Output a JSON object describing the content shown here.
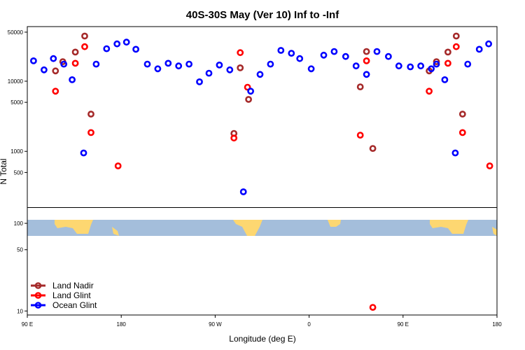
{
  "chart_data": {
    "type": "scatter",
    "title": "40S-30S May (Ver 10)   Inf to -Inf",
    "xlabel": "Longitude (deg E)",
    "ylabel": "N Total",
    "x_ticks": [
      {
        "x": 90,
        "label": "90 E"
      },
      {
        "x": 180,
        "label": "180"
      },
      {
        "x": 270,
        "label": "90 W"
      },
      {
        "x": 360,
        "label": "0"
      },
      {
        "x": 450,
        "label": "90 E"
      },
      {
        "x": 540,
        "label": "180"
      }
    ],
    "xlim": [
      90,
      540
    ],
    "y_scale": "log",
    "upper_panel": {
      "ylim": [
        160,
        60000
      ],
      "y_ticks": [
        500,
        1000,
        5000,
        10000,
        50000
      ]
    },
    "lower_panel": {
      "ylim": [
        9,
        150
      ],
      "y_ticks": [
        10,
        50,
        100
      ]
    },
    "legend": {
      "position": "bottom-left",
      "entries": [
        {
          "name": "Land Nadir",
          "color": "#a52a2a"
        },
        {
          "name": "Land Glint",
          "color": "#ff0000"
        },
        {
          "name": "Ocean Glint",
          "color": "#0000ff"
        }
      ]
    },
    "series": [
      {
        "name": "Land Nadir",
        "color": "#a52a2a",
        "points": [
          {
            "x": 117,
            "y": 14000
          },
          {
            "x": 124,
            "y": 19000
          },
          {
            "x": 136,
            "y": 26000
          },
          {
            "x": 145,
            "y": 44000
          },
          {
            "x": 151,
            "y": 3400
          },
          {
            "x": 288,
            "y": 1800
          },
          {
            "x": 294,
            "y": 15500
          },
          {
            "x": 302,
            "y": 5500
          },
          {
            "x": 409,
            "y": 8300
          },
          {
            "x": 415,
            "y": 26500
          },
          {
            "x": 421,
            "y": 1100
          },
          {
            "x": 475,
            "y": 14000
          },
          {
            "x": 482,
            "y": 19000
          },
          {
            "x": 493,
            "y": 26000
          },
          {
            "x": 501,
            "y": 44000
          },
          {
            "x": 507,
            "y": 3400
          }
        ]
      },
      {
        "name": "Land Glint",
        "color": "#ff0000",
        "points": [
          {
            "x": 117,
            "y": 7200
          },
          {
            "x": 136,
            "y": 18000
          },
          {
            "x": 145,
            "y": 31000
          },
          {
            "x": 151,
            "y": 1850
          },
          {
            "x": 177,
            "y": 620
          },
          {
            "x": 288,
            "y": 1550
          },
          {
            "x": 294,
            "y": 25500
          },
          {
            "x": 301,
            "y": 8200
          },
          {
            "x": 409,
            "y": 1700
          },
          {
            "x": 415,
            "y": 19500
          },
          {
            "x": 421,
            "y": 11
          },
          {
            "x": 475,
            "y": 7200
          },
          {
            "x": 493,
            "y": 18000
          },
          {
            "x": 501,
            "y": 31000
          },
          {
            "x": 507,
            "y": 1850
          },
          {
            "x": 533,
            "y": 620
          }
        ]
      },
      {
        "name": "Ocean Glint",
        "color": "#0000ff",
        "points": [
          {
            "x": 96,
            "y": 19500
          },
          {
            "x": 106,
            "y": 14500
          },
          {
            "x": 115,
            "y": 21000
          },
          {
            "x": 125,
            "y": 17500
          },
          {
            "x": 133,
            "y": 10500
          },
          {
            "x": 144,
            "y": 950
          },
          {
            "x": 156,
            "y": 17500
          },
          {
            "x": 166,
            "y": 29000
          },
          {
            "x": 176,
            "y": 34000
          },
          {
            "x": 185,
            "y": 36000
          },
          {
            "x": 194,
            "y": 28500
          },
          {
            "x": 205,
            "y": 17500
          },
          {
            "x": 215,
            "y": 15000
          },
          {
            "x": 225,
            "y": 18000
          },
          {
            "x": 235,
            "y": 16500
          },
          {
            "x": 245,
            "y": 17500
          },
          {
            "x": 255,
            "y": 9800
          },
          {
            "x": 264,
            "y": 13000
          },
          {
            "x": 274,
            "y": 17000
          },
          {
            "x": 284,
            "y": 14500
          },
          {
            "x": 297,
            "y": 265
          },
          {
            "x": 304,
            "y": 7200
          },
          {
            "x": 313,
            "y": 12500
          },
          {
            "x": 323,
            "y": 17500
          },
          {
            "x": 333,
            "y": 27500
          },
          {
            "x": 343,
            "y": 25000
          },
          {
            "x": 351,
            "y": 21000
          },
          {
            "x": 362,
            "y": 15000
          },
          {
            "x": 374,
            "y": 23500
          },
          {
            "x": 384,
            "y": 26500
          },
          {
            "x": 395,
            "y": 22500
          },
          {
            "x": 405,
            "y": 16500
          },
          {
            "x": 415,
            "y": 12500
          },
          {
            "x": 425,
            "y": 26500
          },
          {
            "x": 436,
            "y": 22500
          },
          {
            "x": 446,
            "y": 16500
          },
          {
            "x": 457,
            "y": 16000
          },
          {
            "x": 467,
            "y": 16500
          },
          {
            "x": 477,
            "y": 15000
          },
          {
            "x": 482,
            "y": 17500
          },
          {
            "x": 490,
            "y": 10500
          },
          {
            "x": 500,
            "y": 950
          },
          {
            "x": 512,
            "y": 17500
          },
          {
            "x": 523,
            "y": 28500
          },
          {
            "x": 532,
            "y": 34000
          }
        ]
      }
    ]
  }
}
